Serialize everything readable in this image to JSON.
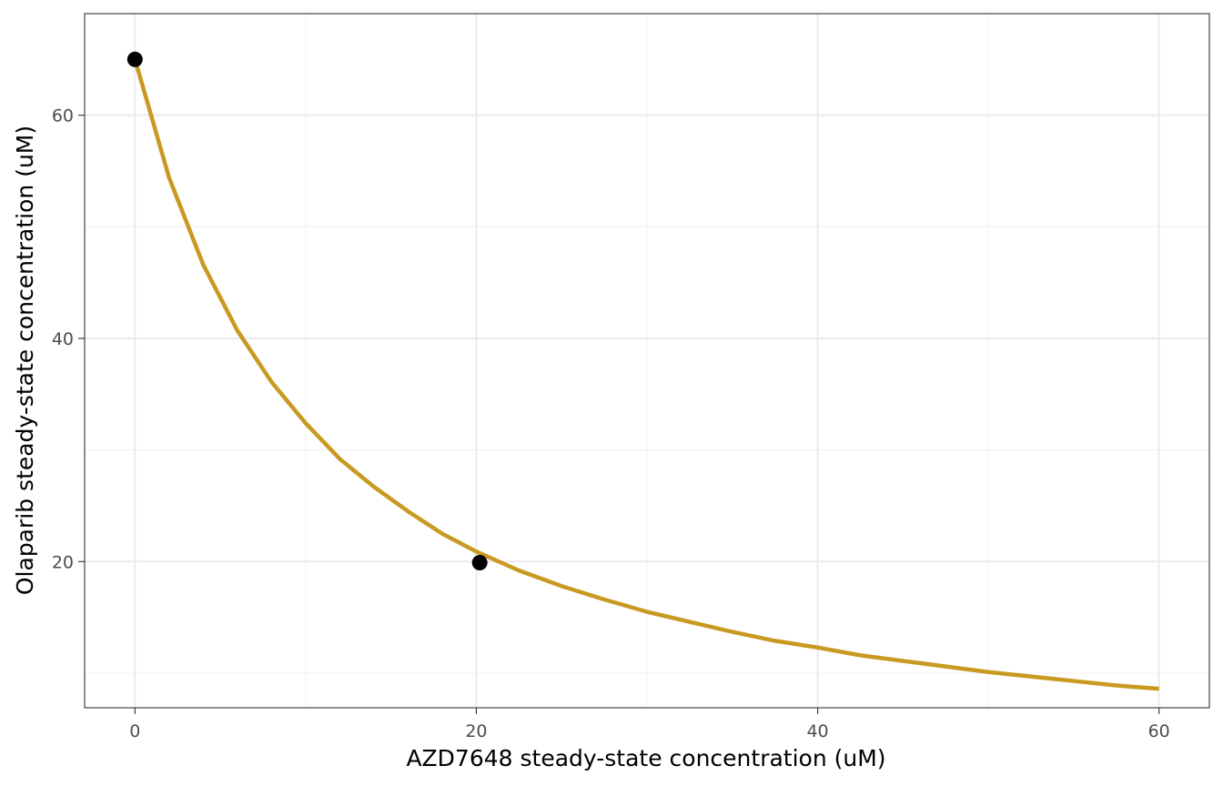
{
  "chart_data": {
    "type": "line",
    "title": "",
    "xlabel": "AZD7648 steady-state concentration (uM)",
    "ylabel": "Olaparib steady-state concentration (uM)",
    "xlim": [
      -2.95,
      62.95
    ],
    "ylim": [
      6.9,
      69.1
    ],
    "x_ticks": [
      0,
      20,
      40,
      60
    ],
    "x_tick_labels": [
      "0",
      "20",
      "40",
      "60"
    ],
    "y_ticks": [
      20,
      40,
      60
    ],
    "y_tick_labels": [
      "20",
      "40",
      "60"
    ],
    "x_minor_ticks": [
      10,
      30,
      50
    ],
    "y_minor_ticks": [
      10,
      30,
      50
    ],
    "grid": true,
    "legend": "none",
    "series": [
      {
        "type": "line",
        "color": "#C99A21",
        "x": [
          0,
          2,
          4,
          6,
          8,
          10,
          12,
          14,
          16,
          18,
          20,
          22.5,
          25,
          27.5,
          30,
          32.5,
          35,
          37.5,
          40,
          42.5,
          45,
          47.5,
          50,
          52.5,
          55,
          57.5,
          60
        ],
        "y": [
          65.0,
          54.4,
          46.6,
          40.7,
          36.1,
          32.4,
          29.2,
          26.7,
          24.5,
          22.5,
          20.9,
          19.2,
          17.8,
          16.6,
          15.5,
          14.6,
          13.7,
          12.9,
          12.3,
          11.6,
          11.1,
          10.6,
          10.1,
          9.7,
          9.3,
          8.9,
          8.6
        ]
      },
      {
        "type": "scatter",
        "color": "#000000",
        "x": [
          0,
          20.2
        ],
        "y": [
          65.0,
          19.9
        ]
      }
    ]
  }
}
